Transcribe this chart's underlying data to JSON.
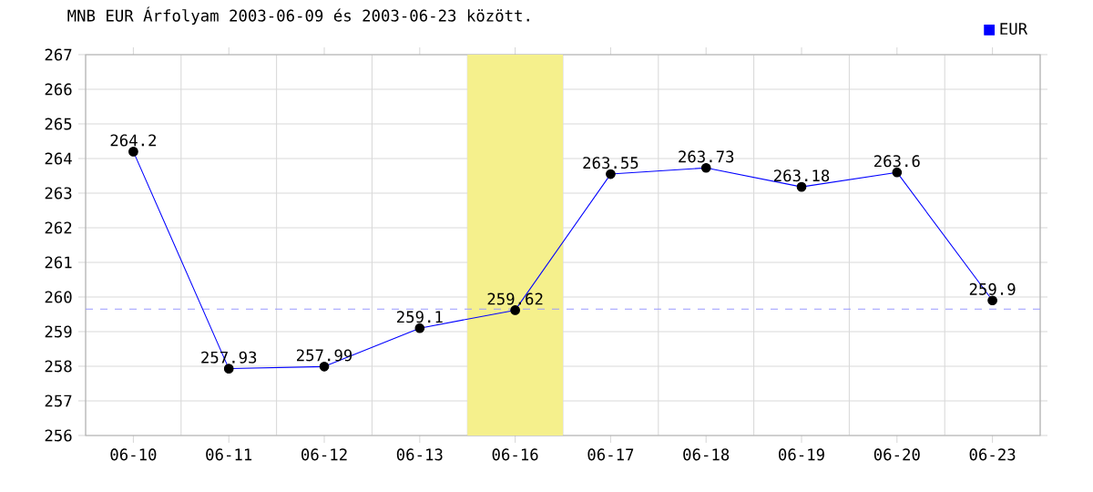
{
  "chart_data": {
    "type": "line",
    "title": "MNB EUR Árfolyam 2003-06-09 és 2003-06-23 között.",
    "categories": [
      "06-10",
      "06-11",
      "06-12",
      "06-13",
      "06-16",
      "06-17",
      "06-18",
      "06-19",
      "06-20",
      "06-23"
    ],
    "series": [
      {
        "name": "EUR",
        "color": "#0000ff",
        "values": [
          264.2,
          257.93,
          257.99,
          259.1,
          259.62,
          263.55,
          263.73,
          263.18,
          263.6,
          259.9
        ]
      }
    ],
    "ylim": [
      256,
      267
    ],
    "yticks": [
      256,
      257,
      258,
      259,
      260,
      261,
      262,
      263,
      264,
      265,
      266,
      267
    ],
    "grid": true,
    "legend": "top right",
    "marker": "circle",
    "line_style": "solid",
    "data_labels": true,
    "ref_lines": [
      {
        "axis": "y",
        "value": 259.65,
        "color": "#9999ff",
        "line_style": "dashed"
      }
    ],
    "bands": [
      {
        "axis": "x",
        "from": "06-16",
        "to": "06-16",
        "color": "#f5f08c"
      }
    ]
  }
}
